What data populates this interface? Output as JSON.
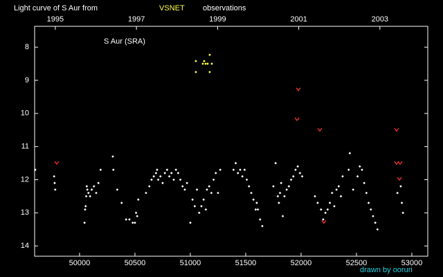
{
  "chart_data": {
    "type": "scatter",
    "title": "Light curve of S Aur from",
    "title_highlight": "VSNET",
    "title_end": "observations",
    "annotation": "S Aur (SRA)",
    "credit": "drawn by ooruri",
    "xlim": [
      49594,
      53144
    ],
    "xticks": [
      50000,
      50500,
      51000,
      51500,
      52000,
      52500,
      53000
    ],
    "x2lim": [
      1994.49,
      2004.18
    ],
    "x2ticks": [
      1995,
      1997,
      1999,
      2001,
      2003
    ],
    "ylim": [
      7.37,
      14.31
    ],
    "yticks": [
      8,
      9,
      10,
      11,
      12,
      13,
      14
    ],
    "y_inverted": true,
    "series": [
      {
        "color": "#ffffff",
        "marker": "dot",
        "x": [
          49600,
          49770,
          49775,
          49780,
          50045,
          50050,
          50055,
          50060,
          50065,
          50070,
          50080,
          50095,
          50110,
          50130,
          50150,
          50170,
          50190,
          50300,
          50305,
          50340,
          50380,
          50420,
          50450,
          50480,
          50500,
          50510,
          50520,
          50530,
          50600,
          50630,
          50650,
          50670,
          50690,
          50700,
          50710,
          50730,
          50750,
          50770,
          50790,
          50810,
          50830,
          50850,
          50870,
          50890,
          50910,
          50930,
          50950,
          50970,
          51000,
          51020,
          51040,
          51060,
          51080,
          51100,
          51120,
          51140,
          51150,
          51170,
          51190,
          51210,
          51230,
          51250,
          51270,
          51390,
          51410,
          51430,
          51450,
          51470,
          51490,
          51510,
          51530,
          51550,
          51570,
          51590,
          51600,
          51610,
          51630,
          51650,
          51750,
          51770,
          51790,
          51800,
          51810,
          51820,
          51835,
          51850,
          51870,
          51890,
          51910,
          51930,
          51950,
          51970,
          51990,
          52010,
          52125,
          52150,
          52180,
          52200,
          52220,
          52240,
          52260,
          52280,
          52300,
          52320,
          52340,
          52360,
          52375,
          52430,
          52440,
          52470,
          52510,
          52530,
          52550,
          52570,
          52590,
          52610,
          52630,
          52650,
          52670,
          52690,
          52870,
          52900,
          52910,
          52920
        ],
        "values": [
          11.7,
          11.9,
          12.1,
          12.3,
          13.3,
          12.9,
          12.8,
          12.5,
          12.2,
          12.3,
          12.4,
          12.5,
          12.3,
          12.2,
          12.4,
          12.1,
          11.7,
          11.3,
          11.7,
          12.3,
          12.7,
          13.2,
          13.2,
          13.3,
          13.3,
          13.0,
          13.1,
          12.6,
          12.4,
          12.2,
          12.0,
          11.9,
          11.8,
          11.7,
          12.0,
          11.9,
          12.1,
          11.8,
          11.7,
          11.9,
          11.8,
          12.0,
          11.7,
          11.8,
          12.0,
          12.2,
          12.3,
          12.1,
          13.3,
          12.6,
          12.8,
          12.3,
          13.0,
          12.8,
          12.6,
          12.9,
          12.3,
          12.2,
          12.4,
          12.0,
          11.8,
          12.4,
          11.7,
          11.7,
          11.5,
          11.8,
          11.7,
          11.9,
          11.7,
          12.0,
          12.2,
          12.4,
          12.6,
          12.9,
          12.7,
          12.9,
          13.2,
          13.4,
          12.2,
          11.5,
          12.5,
          12.7,
          12.4,
          12.1,
          13.1,
          12.5,
          12.3,
          12.2,
          12.0,
          11.9,
          11.7,
          11.6,
          11.8,
          11.9,
          12.5,
          12.7,
          12.9,
          13.2,
          13.0,
          12.9,
          12.7,
          12.4,
          12.8,
          12.3,
          12.2,
          12.5,
          11.9,
          11.7,
          11.2,
          12.3,
          11.9,
          11.6,
          11.7,
          12.1,
          12.4,
          12.7,
          12.9,
          13.1,
          13.3,
          13.5,
          12.4,
          12.2,
          12.7,
          13.0
        ]
      },
      {
        "color": "#ffff44",
        "marker": "dot",
        "x": [
          51050,
          51050,
          51113,
          51125,
          51138,
          51156,
          51175,
          51175,
          51194
        ],
        "values": [
          8.42,
          8.75,
          8.5,
          8.42,
          8.5,
          8.5,
          8.23,
          8.75,
          8.5
        ]
      },
      {
        "color": "#ff3030",
        "marker": "v",
        "x": [
          49794,
          51975,
          51963,
          52169,
          52206,
          52862,
          52862,
          52894,
          52888
        ],
        "values": [
          11.49,
          9.27,
          10.17,
          10.49,
          13.27,
          10.49,
          11.49,
          11.49,
          11.97
        ]
      }
    ]
  }
}
